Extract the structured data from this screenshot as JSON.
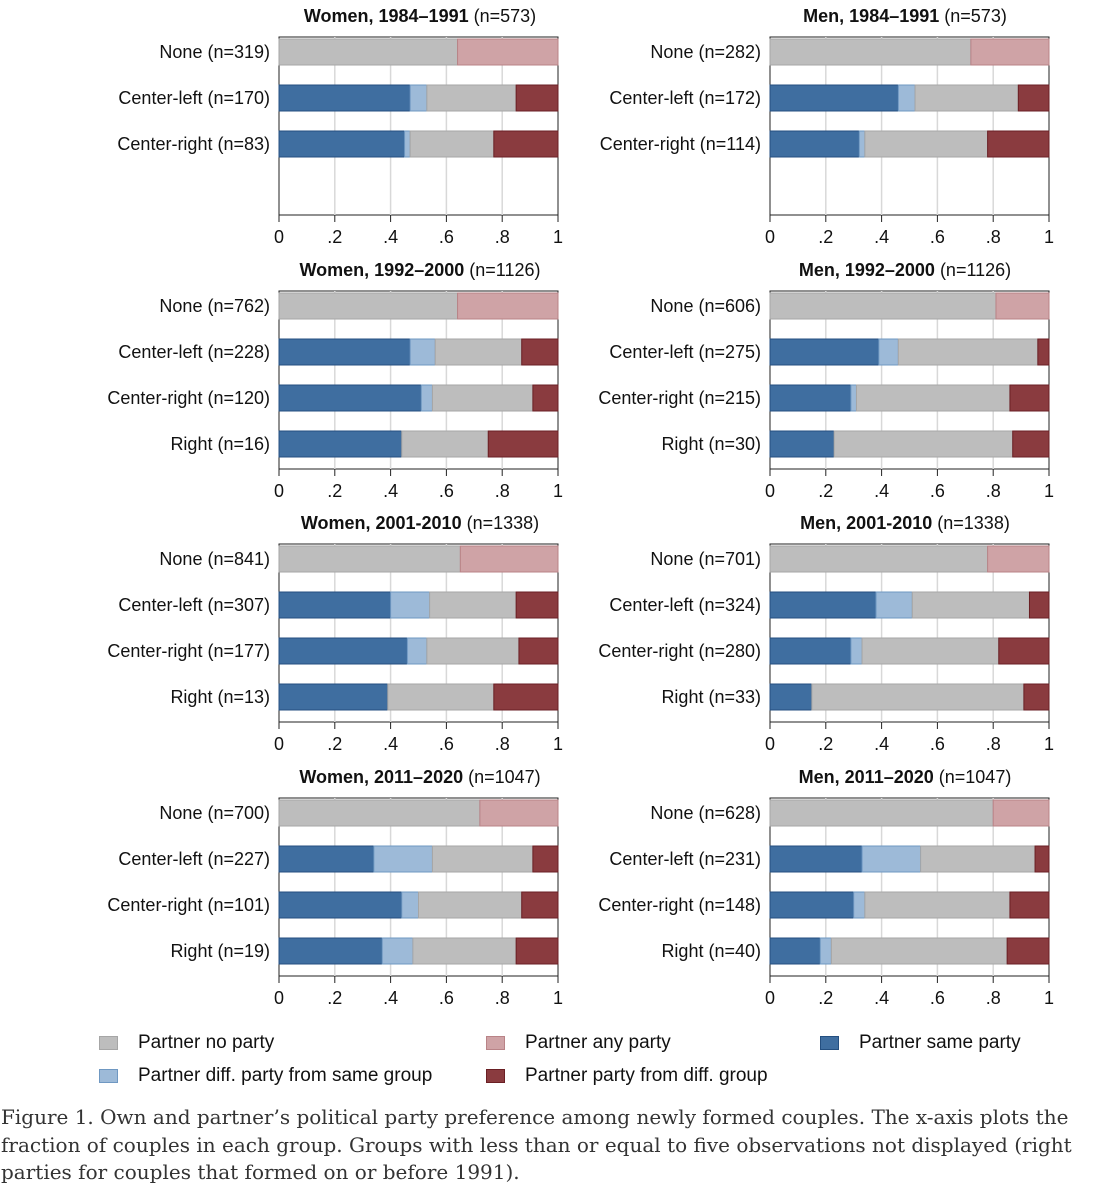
{
  "chart_data": {
    "type": "bar",
    "orientation": "horizontal-stacked",
    "xlim": [
      0,
      1
    ],
    "xticks": [
      "0",
      ".2",
      ".4",
      ".6",
      ".8",
      "1"
    ],
    "segments": [
      "Partner same party",
      "Partner diff. party from same group",
      "Partner no party",
      "Partner party from diff. group",
      "Partner any party"
    ],
    "colors": {
      "same_party": "#3f6ea0",
      "diff_party_same_group": "#9dbad8",
      "no_party": "#bdbdbd",
      "party_diff_group": "#8a3b3f",
      "any_party": "#cfa3a6",
      "grid": "#d8d8d8",
      "axis": "#222222"
    },
    "panels": [
      {
        "title_bold": "Women, 1984–1991",
        "title_n": "(n=573)",
        "rows": [
          {
            "label": "None (n=319)",
            "kind": "none",
            "no_party": 0.64,
            "any_party": 0.36
          },
          {
            "label": "Center-left (n=170)",
            "kind": "party",
            "same_party": 0.47,
            "diff_party_same_group": 0.06,
            "no_party": 0.32,
            "party_diff_group": 0.15
          },
          {
            "label": "Center-right (n=83)",
            "kind": "party",
            "same_party": 0.45,
            "diff_party_same_group": 0.02,
            "no_party": 0.3,
            "party_diff_group": 0.23
          }
        ]
      },
      {
        "title_bold": "Men, 1984–1991",
        "title_n": "(n=573)",
        "rows": [
          {
            "label": "None (n=282)",
            "kind": "none",
            "no_party": 0.72,
            "any_party": 0.28
          },
          {
            "label": "Center-left (n=172)",
            "kind": "party",
            "same_party": 0.46,
            "diff_party_same_group": 0.06,
            "no_party": 0.37,
            "party_diff_group": 0.11
          },
          {
            "label": "Center-right (n=114)",
            "kind": "party",
            "same_party": 0.32,
            "diff_party_same_group": 0.02,
            "no_party": 0.44,
            "party_diff_group": 0.22
          }
        ]
      },
      {
        "title_bold": "Women, 1992–2000",
        "title_n": "(n=1126)",
        "rows": [
          {
            "label": "None (n=762)",
            "kind": "none",
            "no_party": 0.64,
            "any_party": 0.36
          },
          {
            "label": "Center-left (n=228)",
            "kind": "party",
            "same_party": 0.47,
            "diff_party_same_group": 0.09,
            "no_party": 0.31,
            "party_diff_group": 0.13
          },
          {
            "label": "Center-right (n=120)",
            "kind": "party",
            "same_party": 0.51,
            "diff_party_same_group": 0.04,
            "no_party": 0.36,
            "party_diff_group": 0.09
          },
          {
            "label": "Right (n=16)",
            "kind": "party",
            "same_party": 0.44,
            "diff_party_same_group": 0.0,
            "no_party": 0.31,
            "party_diff_group": 0.25
          }
        ]
      },
      {
        "title_bold": "Men, 1992–2000",
        "title_n": "(n=1126)",
        "rows": [
          {
            "label": "None (n=606)",
            "kind": "none",
            "no_party": 0.81,
            "any_party": 0.19
          },
          {
            "label": "Center-left (n=275)",
            "kind": "party",
            "same_party": 0.39,
            "diff_party_same_group": 0.07,
            "no_party": 0.5,
            "party_diff_group": 0.04
          },
          {
            "label": "Center-right (n=215)",
            "kind": "party",
            "same_party": 0.29,
            "diff_party_same_group": 0.02,
            "no_party": 0.55,
            "party_diff_group": 0.14
          },
          {
            "label": "Right (n=30)",
            "kind": "party",
            "same_party": 0.23,
            "diff_party_same_group": 0.0,
            "no_party": 0.64,
            "party_diff_group": 0.13
          }
        ]
      },
      {
        "title_bold": "Women, 2001-2010",
        "title_n": "(n=1338)",
        "rows": [
          {
            "label": "None (n=841)",
            "kind": "none",
            "no_party": 0.65,
            "any_party": 0.35
          },
          {
            "label": "Center-left (n=307)",
            "kind": "party",
            "same_party": 0.4,
            "diff_party_same_group": 0.14,
            "no_party": 0.31,
            "party_diff_group": 0.15
          },
          {
            "label": "Center-right (n=177)",
            "kind": "party",
            "same_party": 0.46,
            "diff_party_same_group": 0.07,
            "no_party": 0.33,
            "party_diff_group": 0.14
          },
          {
            "label": "Right (n=13)",
            "kind": "party",
            "same_party": 0.39,
            "diff_party_same_group": 0.0,
            "no_party": 0.38,
            "party_diff_group": 0.23
          }
        ]
      },
      {
        "title_bold": "Men, 2001-2010",
        "title_n": "(n=1338)",
        "rows": [
          {
            "label": "None (n=701)",
            "kind": "none",
            "no_party": 0.78,
            "any_party": 0.22
          },
          {
            "label": "Center-left (n=324)",
            "kind": "party",
            "same_party": 0.38,
            "diff_party_same_group": 0.13,
            "no_party": 0.42,
            "party_diff_group": 0.07
          },
          {
            "label": "Center-right (n=280)",
            "kind": "party",
            "same_party": 0.29,
            "diff_party_same_group": 0.04,
            "no_party": 0.49,
            "party_diff_group": 0.18
          },
          {
            "label": "Right (n=33)",
            "kind": "party",
            "same_party": 0.15,
            "diff_party_same_group": 0.0,
            "no_party": 0.76,
            "party_diff_group": 0.09
          }
        ]
      },
      {
        "title_bold": "Women, 2011–2020",
        "title_n": "(n=1047)",
        "rows": [
          {
            "label": "None (n=700)",
            "kind": "none",
            "no_party": 0.72,
            "any_party": 0.28
          },
          {
            "label": "Center-left (n=227)",
            "kind": "party",
            "same_party": 0.34,
            "diff_party_same_group": 0.21,
            "no_party": 0.36,
            "party_diff_group": 0.09
          },
          {
            "label": "Center-right (n=101)",
            "kind": "party",
            "same_party": 0.44,
            "diff_party_same_group": 0.06,
            "no_party": 0.37,
            "party_diff_group": 0.13
          },
          {
            "label": "Right (n=19)",
            "kind": "party",
            "same_party": 0.37,
            "diff_party_same_group": 0.11,
            "no_party": 0.37,
            "party_diff_group": 0.15
          }
        ]
      },
      {
        "title_bold": "Men, 2011–2020",
        "title_n": "(n=1047)",
        "rows": [
          {
            "label": "None (n=628)",
            "kind": "none",
            "no_party": 0.8,
            "any_party": 0.2
          },
          {
            "label": "Center-left (n=231)",
            "kind": "party",
            "same_party": 0.33,
            "diff_party_same_group": 0.21,
            "no_party": 0.41,
            "party_diff_group": 0.05
          },
          {
            "label": "Center-right (n=148)",
            "kind": "party",
            "same_party": 0.3,
            "diff_party_same_group": 0.04,
            "no_party": 0.52,
            "party_diff_group": 0.14
          },
          {
            "label": "Right (n=40)",
            "kind": "party",
            "same_party": 0.18,
            "diff_party_same_group": 0.04,
            "no_party": 0.63,
            "party_diff_group": 0.15
          }
        ]
      }
    ]
  },
  "legend": {
    "no_party": "Partner no party",
    "any_party": "Partner any party",
    "same_party": "Partner same party",
    "diff_party_same_group": "Partner diff. party from same group",
    "party_diff_group": "Partner party from diff. group"
  },
  "caption": "Figure 1. Own and partner’s political party preference among newly formed couples. The x-axis plots the fraction of couples in each group. Groups with less than or equal to five observations not displayed (right parties for couples that formed on or before 1991)."
}
